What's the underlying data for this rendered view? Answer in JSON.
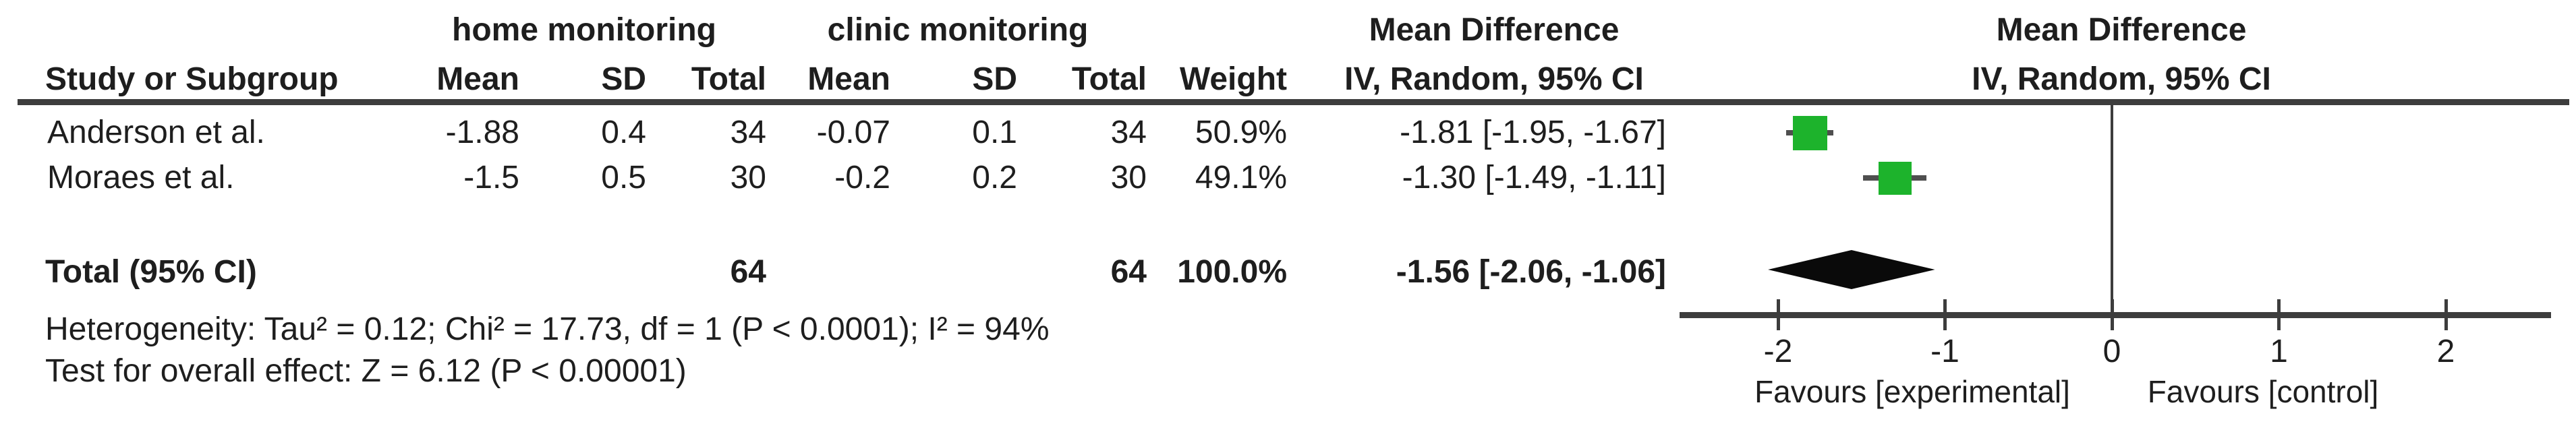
{
  "colors": {
    "marker_green": "#1db32c",
    "diamond_black": "#0a0a0a",
    "line_gray": "#3d3d3d",
    "whisker_gray": "#4f4f4f",
    "text": "#1e1e1e"
  },
  "table": {
    "group_headers": {
      "experimental_group": "home monitoring",
      "control_group": "clinic monitoring",
      "effect_col": "Mean Difference",
      "plot_col": "Mean Difference"
    },
    "column_headers": {
      "study": "Study or Subgroup",
      "mean_exp": "Mean",
      "sd_exp": "SD",
      "total_exp": "Total",
      "mean_ctl": "Mean",
      "sd_ctl": "SD",
      "total_ctl": "Total",
      "weight": "Weight",
      "ci": "IV, Random, 95% CI",
      "plot_ci": "IV, Random, 95% CI"
    },
    "studies": [
      {
        "name": "Anderson et al.",
        "mean_exp": "-1.88",
        "sd_exp": "0.4",
        "total_exp": "34",
        "mean_ctl": "-0.07",
        "sd_ctl": "0.1",
        "total_ctl": "34",
        "weight": "50.9%",
        "ci_text": "-1.81 [-1.95, -1.67]"
      },
      {
        "name": "Moraes et al.",
        "mean_exp": "-1.5",
        "sd_exp": "0.5",
        "total_exp": "30",
        "mean_ctl": "-0.2",
        "sd_ctl": "0.2",
        "total_ctl": "30",
        "weight": "49.1%",
        "ci_text": "-1.30 [-1.49, -1.11]"
      }
    ],
    "total_row": {
      "label": "Total (95% CI)",
      "total_exp": "64",
      "total_ctl": "64",
      "weight": "100.0%",
      "ci_text": "-1.56 [-2.06, -1.06]"
    },
    "footnotes": {
      "heterogeneity": "Heterogeneity: Tau² = 0.12; Chi² = 17.73, df = 1 (P < 0.0001); I² = 94%",
      "overall_effect": "Test for overall effect: Z = 6.12 (P < 0.00001)"
    }
  },
  "chart_data": {
    "type": "scatter",
    "subtype": "forest-plot",
    "title": "Mean Difference, IV, Random, 95% CI",
    "x_ticks": [
      -2,
      -1,
      0,
      1,
      2
    ],
    "xlim": [
      -2.6,
      2.6
    ],
    "zero_line": 0,
    "favours_left": "Favours [experimental]",
    "favours_right": "Favours [control]",
    "studies": [
      {
        "name": "Anderson et al.",
        "effect": -1.81,
        "ci_low": -1.95,
        "ci_high": -1.67,
        "weight_pct": 50.9
      },
      {
        "name": "Moraes et al.",
        "effect": -1.3,
        "ci_low": -1.49,
        "ci_high": -1.11,
        "weight_pct": 49.1
      }
    ],
    "total": {
      "label": "Total (95% CI)",
      "effect": -1.56,
      "ci_low": -2.06,
      "ci_high": -1.06,
      "weight_pct": 100.0
    }
  }
}
